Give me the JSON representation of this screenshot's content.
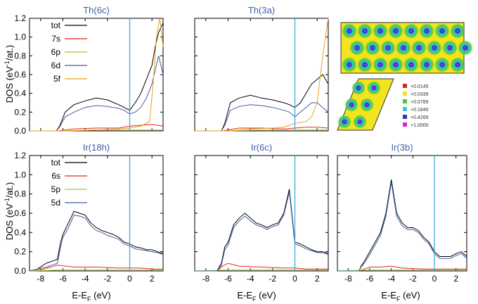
{
  "colors": {
    "tot": "#000000",
    "s": "#e8231b",
    "p": "#9acd32",
    "d": "#3f5fa5",
    "f": "#f39c1e",
    "fermi": "#2fa8dd",
    "title": "#3f5fa5"
  },
  "chart_data": {
    "type": "line",
    "shared_axes": {
      "xlabel": "E-E",
      "xlabel_sub": "F",
      "xlabel_unit": " (eV)",
      "ylabel": "DOS (eV",
      "ylabel_sup": "-1",
      "ylabel_rest": "/at.)",
      "xlim": [
        -9,
        3
      ],
      "ylim": [
        0,
        1.2
      ],
      "xticks": [
        -8,
        -6,
        -4,
        -2,
        0,
        2
      ],
      "yticks": [
        0,
        0.2,
        0.4,
        0.6,
        0.8,
        1.0,
        1.2
      ],
      "ytick_labels": [
        "0.0",
        "0.2",
        "0.4",
        "0.6",
        "0.8",
        "1.0",
        "1.2"
      ],
      "fermi_level": 0
    },
    "panels": [
      {
        "title": "Th(6c)",
        "legend": [
          "tot",
          "7s",
          "6p",
          "6d",
          "5f"
        ],
        "series": [
          {
            "name": "tot",
            "color_key": "tot",
            "x": [
              -9,
              -6.6,
              -6.3,
              -5.8,
              -5,
              -4,
              -3,
              -2,
              -1,
              -0.5,
              0,
              0.5,
              1,
              1.5,
              2,
              2.3,
              2.6,
              3
            ],
            "y": [
              0,
              0,
              0.05,
              0.2,
              0.28,
              0.32,
              0.35,
              0.33,
              0.28,
              0.25,
              0.22,
              0.3,
              0.4,
              0.55,
              0.7,
              0.9,
              1.05,
              1.15
            ]
          },
          {
            "name": "7s",
            "color_key": "s",
            "x": [
              -9,
              -6.5,
              -5,
              -3,
              -1,
              0,
              1,
              2,
              3
            ],
            "y": [
              0,
              0,
              0.02,
              0.03,
              0.03,
              0.05,
              0.06,
              0.07,
              0.05
            ]
          },
          {
            "name": "6p",
            "color_key": "p",
            "x": [
              -9,
              -6,
              -3,
              0,
              2,
              3
            ],
            "y": [
              0,
              0,
              0.01,
              0.01,
              0.01,
              0.01
            ]
          },
          {
            "name": "6d",
            "color_key": "d",
            "x": [
              -9,
              -6.6,
              -6.3,
              -5.8,
              -5,
              -4,
              -3,
              -2,
              -1,
              -0.5,
              0,
              0.5,
              1,
              1.5,
              2,
              2.3,
              2.6,
              3
            ],
            "y": [
              0,
              0,
              0.04,
              0.15,
              0.2,
              0.25,
              0.27,
              0.26,
              0.24,
              0.22,
              0.18,
              0.2,
              0.25,
              0.35,
              0.5,
              0.65,
              0.8,
              0.6
            ]
          },
          {
            "name": "5f",
            "color_key": "f",
            "x": [
              -9,
              -6,
              -3,
              -1,
              0,
              1,
              1.8,
              2.1,
              2.4,
              2.7,
              3
            ],
            "y": [
              0,
              0,
              0.01,
              0.02,
              0.03,
              0.05,
              0.1,
              0.5,
              1.0,
              1.2,
              0.9
            ]
          }
        ]
      },
      {
        "title": "Th(3a)",
        "series": [
          {
            "name": "tot",
            "color_key": "tot",
            "x": [
              -9,
              -6.6,
              -6.3,
              -5.8,
              -5,
              -4,
              -3,
              -2,
              -1,
              -0.5,
              0,
              0.5,
              1,
              1.5,
              2,
              2.5,
              3
            ],
            "y": [
              0,
              0,
              0.08,
              0.3,
              0.35,
              0.38,
              0.35,
              0.33,
              0.3,
              0.28,
              0.25,
              0.3,
              0.4,
              0.5,
              0.55,
              0.6,
              0.5
            ]
          },
          {
            "name": "7s",
            "color_key": "s",
            "x": [
              -9,
              -6.5,
              -5,
              -3,
              -1,
              0,
              1,
              2,
              3
            ],
            "y": [
              0,
              0,
              0.03,
              0.03,
              0.02,
              0.03,
              0.04,
              0.04,
              0.03
            ]
          },
          {
            "name": "6p",
            "color_key": "p",
            "x": [
              -9,
              -6,
              -3,
              0,
              2,
              3
            ],
            "y": [
              0,
              0,
              0.01,
              0.01,
              0.01,
              0.01
            ]
          },
          {
            "name": "6d",
            "color_key": "d",
            "x": [
              -9,
              -6.6,
              -6.3,
              -5.8,
              -5,
              -4,
              -3,
              -2,
              -1,
              -0.5,
              0,
              0.5,
              1,
              1.5,
              2,
              2.5,
              3
            ],
            "y": [
              0,
              0,
              0.06,
              0.22,
              0.26,
              0.28,
              0.27,
              0.25,
              0.22,
              0.2,
              0.15,
              0.2,
              0.25,
              0.3,
              0.3,
              0.25,
              0.2
            ]
          },
          {
            "name": "5f",
            "color_key": "f",
            "x": [
              -9,
              -6,
              -4,
              -2,
              -1,
              0,
              1,
              1.5,
              2,
              2.5,
              3
            ],
            "y": [
              0,
              0,
              0.02,
              0.03,
              0.04,
              0.08,
              0.1,
              0.15,
              0.3,
              0.8,
              1.2
            ]
          }
        ]
      },
      {
        "title": "Ir(18h)",
        "legend": [
          "tot",
          "6s",
          "5p",
          "5d"
        ],
        "series": [
          {
            "name": "tot",
            "color_key": "tot",
            "x": [
              -9,
              -8.3,
              -7.5,
              -7,
              -6.5,
              -6.2,
              -6,
              -5.5,
              -5,
              -4.5,
              -4,
              -3.5,
              -3,
              -2.5,
              -2,
              -1.5,
              -1,
              -0.5,
              0,
              0.5,
              1,
              1.5,
              2,
              2.5,
              3
            ],
            "y": [
              0,
              0.02,
              0.08,
              0.1,
              0.12,
              0.3,
              0.38,
              0.5,
              0.62,
              0.6,
              0.58,
              0.5,
              0.45,
              0.42,
              0.4,
              0.38,
              0.35,
              0.3,
              0.28,
              0.25,
              0.24,
              0.22,
              0.22,
              0.2,
              0.18
            ]
          },
          {
            "name": "6s",
            "color_key": "s",
            "x": [
              -9,
              -8,
              -6.5,
              -5,
              -3,
              -1,
              0,
              1,
              2,
              3
            ],
            "y": [
              0,
              0.01,
              0.06,
              0.04,
              0.04,
              0.03,
              0.03,
              0.03,
              0.02,
              0.02
            ]
          },
          {
            "name": "5p",
            "color_key": "p",
            "x": [
              -9,
              -6,
              -3,
              0,
              3
            ],
            "y": [
              0,
              0.01,
              0.01,
              0.01,
              0.01
            ]
          },
          {
            "name": "5d",
            "color_key": "d",
            "x": [
              -9,
              -7.5,
              -7,
              -6.5,
              -6.2,
              -6,
              -5.5,
              -5,
              -4.5,
              -4,
              -3.5,
              -3,
              -2.5,
              -2,
              -1.5,
              -1,
              -0.5,
              0,
              0.5,
              1,
              1.5,
              2,
              2.5,
              3
            ],
            "y": [
              0,
              0.04,
              0.06,
              0.08,
              0.25,
              0.35,
              0.45,
              0.58,
              0.57,
              0.55,
              0.47,
              0.42,
              0.4,
              0.37,
              0.35,
              0.33,
              0.28,
              0.26,
              0.23,
              0.22,
              0.21,
              0.2,
              0.19,
              0.17
            ]
          }
        ]
      },
      {
        "title": "Ir(6c)",
        "series": [
          {
            "name": "tot",
            "color_key": "tot",
            "x": [
              -9,
              -7,
              -6.6,
              -6.3,
              -6,
              -5.5,
              -5,
              -4.5,
              -4,
              -3.5,
              -3,
              -2.5,
              -2,
              -1.5,
              -1,
              -0.5,
              0,
              0.5,
              1,
              1.5,
              2,
              2.5,
              3
            ],
            "y": [
              0,
              0,
              0.08,
              0.25,
              0.3,
              0.48,
              0.55,
              0.6,
              0.55,
              0.5,
              0.48,
              0.45,
              0.48,
              0.5,
              0.6,
              0.85,
              0.3,
              0.28,
              0.25,
              0.22,
              0.2,
              0.2,
              0.18
            ]
          },
          {
            "name": "6s",
            "color_key": "s",
            "x": [
              -9,
              -7,
              -6.5,
              -6,
              -5,
              -3,
              -1,
              0,
              1,
              2,
              3
            ],
            "y": [
              0,
              0,
              0.05,
              0.08,
              0.05,
              0.04,
              0.03,
              0.03,
              0.02,
              0.02,
              0.02
            ]
          },
          {
            "name": "5p",
            "color_key": "p",
            "x": [
              -9,
              -6,
              -3,
              0,
              3
            ],
            "y": [
              0,
              0.01,
              0.01,
              0.01,
              0.01
            ]
          },
          {
            "name": "5d",
            "color_key": "d",
            "x": [
              -9,
              -7,
              -6.6,
              -6.3,
              -6,
              -5.5,
              -5,
              -4.5,
              -4,
              -3.5,
              -3,
              -2.5,
              -2,
              -1.5,
              -1,
              -0.5,
              0,
              0.5,
              1,
              1.5,
              2,
              2.5,
              3
            ],
            "y": [
              0,
              0,
              0.06,
              0.22,
              0.27,
              0.45,
              0.52,
              0.57,
              0.52,
              0.48,
              0.46,
              0.43,
              0.46,
              0.48,
              0.58,
              0.82,
              0.28,
              0.26,
              0.23,
              0.21,
              0.19,
              0.19,
              0.17
            ]
          }
        ]
      },
      {
        "title": "Ir(3b)",
        "series": [
          {
            "name": "tot",
            "color_key": "tot",
            "x": [
              -9,
              -7,
              -6.8,
              -6.5,
              -6,
              -5.5,
              -5,
              -4.5,
              -4,
              -3.5,
              -3,
              -2.5,
              -2,
              -1.5,
              -1,
              -0.5,
              0,
              0.5,
              1,
              1.5,
              2,
              2.5,
              3
            ],
            "y": [
              0,
              0,
              0.05,
              0.1,
              0.2,
              0.3,
              0.4,
              0.6,
              0.95,
              0.6,
              0.5,
              0.45,
              0.45,
              0.42,
              0.35,
              0.3,
              0.2,
              0.15,
              0.15,
              0.15,
              0.18,
              0.2,
              0.15
            ]
          },
          {
            "name": "6s",
            "color_key": "s",
            "x": [
              -9,
              -7,
              -6,
              -5,
              -4,
              -3,
              -1,
              0,
              1,
              2,
              3
            ],
            "y": [
              0,
              0,
              0.04,
              0.04,
              0.05,
              0.03,
              0.02,
              0.02,
              0.02,
              0.02,
              0.02
            ]
          },
          {
            "name": "5p",
            "color_key": "p",
            "x": [
              -9,
              -6,
              -3,
              0,
              3
            ],
            "y": [
              0,
              0.01,
              0.01,
              0.01,
              0.01
            ]
          },
          {
            "name": "5d",
            "color_key": "d",
            "x": [
              -9,
              -7,
              -6.8,
              -6.5,
              -6,
              -5.5,
              -5,
              -4.5,
              -4,
              -3.5,
              -3,
              -2.5,
              -2,
              -1.5,
              -1,
              -0.5,
              0,
              0.5,
              1,
              1.5,
              2,
              2.5,
              3
            ],
            "y": [
              0,
              0,
              0.04,
              0.08,
              0.17,
              0.27,
              0.37,
              0.57,
              0.92,
              0.57,
              0.47,
              0.43,
              0.43,
              0.4,
              0.33,
              0.28,
              0.18,
              0.13,
              0.13,
              0.13,
              0.16,
              0.18,
              0.13
            ]
          }
        ]
      }
    ]
  },
  "inset": {
    "colorbar": [
      {
        "label": "+0.0145",
        "color": "#d9261c"
      },
      {
        "label": "+0.0339",
        "color": "#f2e41f"
      },
      {
        "label": "+0.0789",
        "color": "#4dc73a"
      },
      {
        "label": "+0.1840",
        "color": "#36c9d6"
      },
      {
        "label": "+0.4289",
        "color": "#1f3fbf"
      },
      {
        "label": "+1.0000",
        "color": "#d428d4"
      }
    ]
  }
}
